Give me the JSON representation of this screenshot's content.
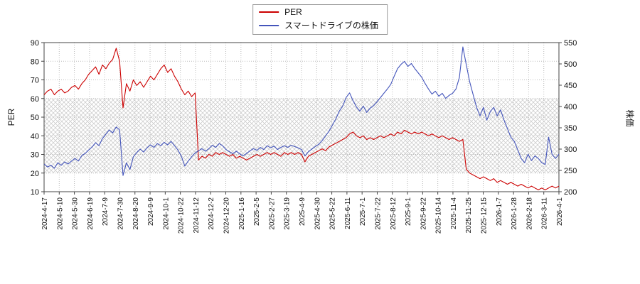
{
  "chart_data": {
    "type": "line",
    "title": "",
    "legend_position": "top-center",
    "grid": true,
    "hatch_band": {
      "axis": "left",
      "from": 20,
      "to": 60
    },
    "left_axis": {
      "label": "PER",
      "min": 10,
      "max": 90,
      "ticks": [
        90,
        80,
        70,
        60,
        50,
        40,
        30,
        20,
        10
      ]
    },
    "right_axis": {
      "label": "株価",
      "min": 200,
      "max": 550,
      "ticks": [
        550,
        500,
        450,
        400,
        350,
        300,
        250,
        200
      ]
    },
    "x_tick_labels": [
      "2024-4-17",
      "2024-5-10",
      "2024-5-30",
      "2024-6-19",
      "2024-7-9",
      "2024-7-30",
      "2024-8-20",
      "2024-9-9",
      "2024-10-1",
      "2024-10-22",
      "2024-11-12",
      "2024-12-2",
      "2024-12-20",
      "2025-1-16",
      "2025-2-5",
      "2025-2-27",
      "2025-3-19",
      "2025-4-9",
      "2025-4-30",
      "2025-5-22",
      "2025-6-11",
      "2025-7-1",
      "2025-7-22",
      "2025-8-12",
      "2025-9-1",
      "2025-9-22",
      "2025-10-14",
      "2025-11-4",
      "2025-11-25",
      "2025-12-15",
      "2026-1-7",
      "2026-1-28",
      "2026-2-18",
      "2026-3-11",
      "2026-4-1"
    ],
    "series": [
      {
        "name": "PER",
        "color": "#cc0000",
        "axis": "left",
        "values": [
          62,
          64,
          65,
          62,
          64,
          65,
          63,
          64,
          66,
          67,
          65,
          68,
          70,
          73,
          75,
          77,
          73,
          78,
          76,
          79,
          81,
          87,
          80,
          55,
          68,
          64,
          70,
          67,
          69,
          66,
          69,
          72,
          70,
          73,
          76,
          78,
          74,
          76,
          72,
          69,
          65,
          62,
          64,
          61,
          63,
          27,
          29,
          28,
          30,
          29,
          31,
          30,
          31,
          30,
          29,
          30,
          28,
          29,
          28,
          27,
          28,
          29,
          30,
          29,
          30,
          31,
          30,
          31,
          30,
          29,
          31,
          30,
          31,
          30,
          31,
          30,
          26,
          29,
          30,
          31,
          32,
          33,
          32,
          34,
          35,
          36,
          37,
          38,
          39,
          41,
          42,
          40,
          39,
          40,
          38,
          39,
          38,
          39,
          40,
          39,
          40,
          41,
          40,
          42,
          41,
          43,
          42,
          41,
          42,
          41,
          42,
          41,
          40,
          41,
          40,
          39,
          40,
          39,
          38,
          39,
          38,
          37,
          38,
          22,
          20,
          19,
          18,
          17,
          18,
          17,
          16,
          17,
          15,
          16,
          15,
          14,
          15,
          14,
          13,
          14,
          13,
          12,
          13,
          12,
          11,
          12,
          11,
          12,
          13,
          12,
          13
        ]
      },
      {
        "name": "スマートドライブの株価",
        "color": "#4455bb",
        "axis": "right",
        "values": [
          265,
          258,
          262,
          255,
          268,
          262,
          270,
          265,
          272,
          278,
          272,
          285,
          290,
          298,
          305,
          315,
          308,
          325,
          335,
          345,
          338,
          352,
          345,
          238,
          268,
          252,
          282,
          292,
          300,
          293,
          303,
          310,
          304,
          313,
          308,
          316,
          310,
          318,
          308,
          298,
          283,
          260,
          272,
          282,
          291,
          296,
          301,
          295,
          301,
          309,
          304,
          313,
          308,
          299,
          294,
          289,
          295,
          289,
          284,
          290,
          296,
          301,
          297,
          304,
          299,
          308,
          303,
          307,
          299,
          304,
          308,
          304,
          309,
          306,
          303,
          299,
          284,
          294,
          300,
          306,
          311,
          320,
          331,
          342,
          356,
          371,
          389,
          401,
          421,
          432,
          414,
          399,
          389,
          401,
          386,
          396,
          402,
          411,
          421,
          431,
          441,
          452,
          471,
          489,
          499,
          506,
          494,
          501,
          489,
          479,
          469,
          454,
          441,
          429,
          436,
          424,
          431,
          419,
          426,
          431,
          441,
          468,
          540,
          498,
          458,
          428,
          398,
          378,
          398,
          368,
          388,
          398,
          378,
          392,
          368,
          348,
          328,
          318,
          298,
          278,
          268,
          288,
          273,
          284,
          278,
          268,
          264,
          328,
          288,
          278,
          288
        ]
      }
    ]
  }
}
